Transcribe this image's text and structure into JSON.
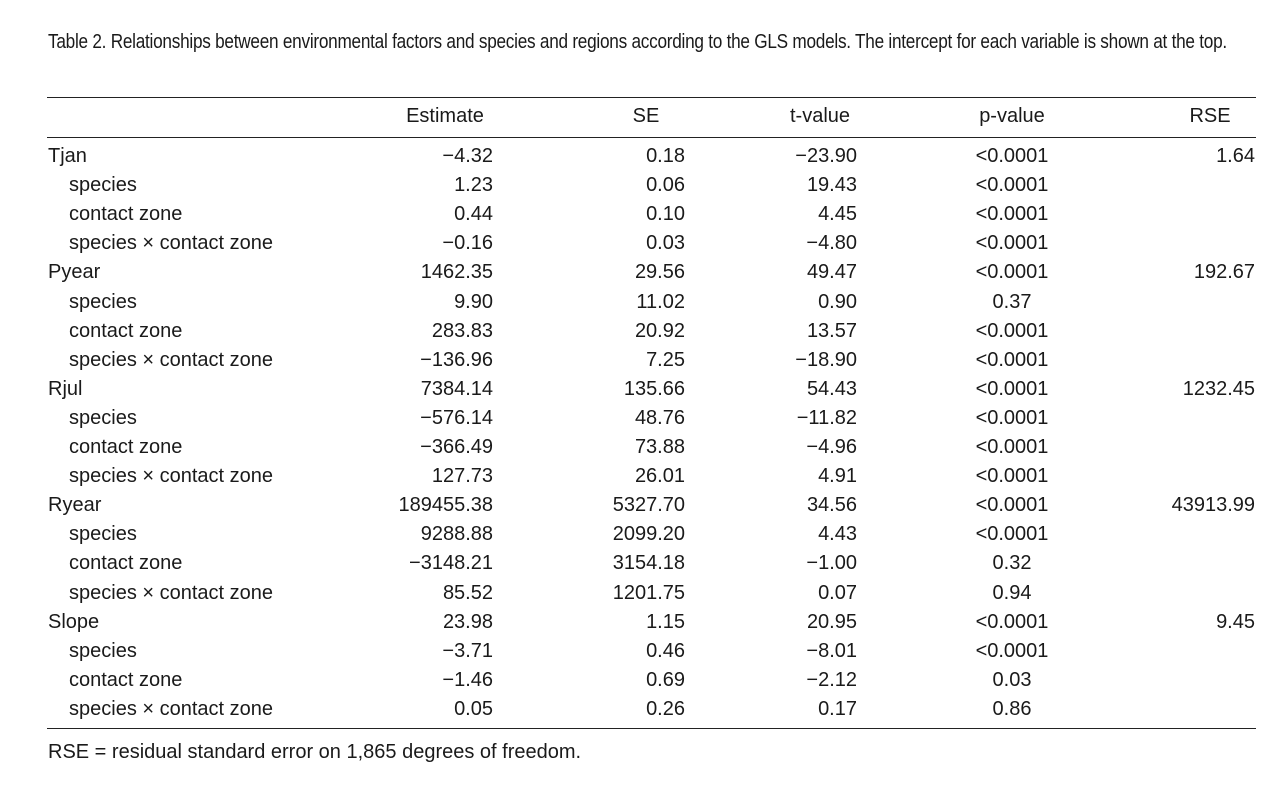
{
  "caption": "Table 2. Relationships between environmental factors and species and regions according to the GLS models. The intercept for each variable is shown at the top.",
  "headers": {
    "estimate": "Estimate",
    "se": "SE",
    "t_value": "t-value",
    "p_value": "p-value",
    "rse": "RSE"
  },
  "rows": [
    {
      "label": "Tjan",
      "sub": false,
      "estimate": "−4.32",
      "se": "0.18",
      "t": "−23.90",
      "p": "<0.0001",
      "rse": "1.64"
    },
    {
      "label": "species",
      "sub": true,
      "estimate": "1.23",
      "se": "0.06",
      "t": "19.43",
      "p": "<0.0001",
      "rse": ""
    },
    {
      "label": "contact zone",
      "sub": true,
      "estimate": "0.44",
      "se": "0.10",
      "t": "4.45",
      "p": "<0.0001",
      "rse": ""
    },
    {
      "label": "species × contact zone",
      "sub": true,
      "estimate": "−0.16",
      "se": "0.03",
      "t": "−4.80",
      "p": "<0.0001",
      "rse": ""
    },
    {
      "label": "Pyear",
      "sub": false,
      "estimate": "1462.35",
      "se": "29.56",
      "t": "49.47",
      "p": "<0.0001",
      "rse": "192.67"
    },
    {
      "label": "species",
      "sub": true,
      "estimate": "9.90",
      "se": "11.02",
      "t": "0.90",
      "p": "0.37",
      "rse": ""
    },
    {
      "label": "contact zone",
      "sub": true,
      "estimate": "283.83",
      "se": "20.92",
      "t": "13.57",
      "p": "<0.0001",
      "rse": ""
    },
    {
      "label": "species × contact zone",
      "sub": true,
      "estimate": "−136.96",
      "se": "7.25",
      "t": "−18.90",
      "p": "<0.0001",
      "rse": ""
    },
    {
      "label": "Rjul",
      "sub": false,
      "estimate": "7384.14",
      "se": "135.66",
      "t": "54.43",
      "p": "<0.0001",
      "rse": "1232.45"
    },
    {
      "label": "species",
      "sub": true,
      "estimate": "−576.14",
      "se": "48.76",
      "t": "−11.82",
      "p": "<0.0001",
      "rse": ""
    },
    {
      "label": "contact zone",
      "sub": true,
      "estimate": "−366.49",
      "se": "73.88",
      "t": "−4.96",
      "p": "<0.0001",
      "rse": ""
    },
    {
      "label": "species × contact zone",
      "sub": true,
      "estimate": "127.73",
      "se": "26.01",
      "t": "4.91",
      "p": "<0.0001",
      "rse": ""
    },
    {
      "label": "Ryear",
      "sub": false,
      "estimate": "189455.38",
      "se": "5327.70",
      "t": "34.56",
      "p": "<0.0001",
      "rse": "43913.99"
    },
    {
      "label": "species",
      "sub": true,
      "estimate": "9288.88",
      "se": "2099.20",
      "t": "4.43",
      "p": "<0.0001",
      "rse": ""
    },
    {
      "label": "contact zone",
      "sub": true,
      "estimate": "−3148.21",
      "se": "3154.18",
      "t": "−1.00",
      "p": "0.32",
      "rse": ""
    },
    {
      "label": "species × contact zone",
      "sub": true,
      "estimate": "85.52",
      "se": "1201.75",
      "t": "0.07",
      "p": "0.94",
      "rse": ""
    },
    {
      "label": "Slope",
      "sub": false,
      "estimate": "23.98",
      "se": "1.15",
      "t": "20.95",
      "p": "<0.0001",
      "rse": "9.45"
    },
    {
      "label": "species",
      "sub": true,
      "estimate": "−3.71",
      "se": "0.46",
      "t": "−8.01",
      "p": "<0.0001",
      "rse": ""
    },
    {
      "label": "contact zone",
      "sub": true,
      "estimate": "−1.46",
      "se": "0.69",
      "t": "−2.12",
      "p": "0.03",
      "rse": ""
    },
    {
      "label": "species × contact zone",
      "sub": true,
      "estimate": "0.05",
      "se": "0.26",
      "t": "0.17",
      "p": "0.86",
      "rse": ""
    }
  ],
  "footnote": "RSE = residual standard error on 1,865 degrees of freedom."
}
